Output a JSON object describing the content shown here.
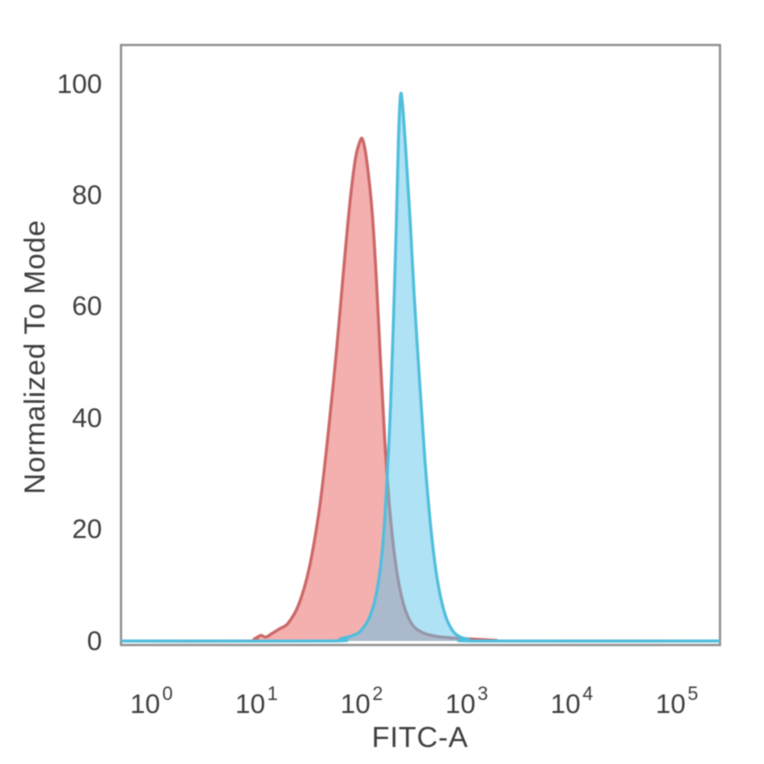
{
  "figure": {
    "background": "#ffffff",
    "axes_color": "#8f8f8f",
    "text_color": "#3d3d3d"
  },
  "chart_data": {
    "type": "area",
    "subtype": "flow-cytometry-overlay-histogram",
    "title": "",
    "xlabel": "FITC-A",
    "ylabel": "Normalized To Mode",
    "x_scale": "log10",
    "grid": false,
    "legend": null,
    "xlim_log10": [
      -0.29,
      5.41
    ],
    "ylim": [
      -1,
      107
    ],
    "x_ticks": [
      {
        "base": "10",
        "exp": "0",
        "log": 0
      },
      {
        "base": "10",
        "exp": "1",
        "log": 1
      },
      {
        "base": "10",
        "exp": "2",
        "log": 2
      },
      {
        "base": "10",
        "exp": "3",
        "log": 3
      },
      {
        "base": "10",
        "exp": "4",
        "log": 4
      },
      {
        "base": "10",
        "exp": "5",
        "log": 5
      }
    ],
    "y_ticks": [
      {
        "label": "0",
        "value": 0
      },
      {
        "label": "20",
        "value": 20
      },
      {
        "label": "40",
        "value": 40
      },
      {
        "label": "60",
        "value": 60
      },
      {
        "label": "80",
        "value": 80
      },
      {
        "label": "100",
        "value": 100
      }
    ],
    "series": [
      {
        "name": "red-histogram",
        "peak_log10x": 2.0,
        "peak_y": 90,
        "line_color": "#cd6767",
        "fill_color": "rgba(232,88,88,0.48)",
        "points_log10x_y": [
          [
            -0.29,
            0
          ],
          [
            0.9,
            0
          ],
          [
            0.98,
            0.4
          ],
          [
            1.04,
            1.0
          ],
          [
            1.09,
            0.7
          ],
          [
            1.15,
            1.4
          ],
          [
            1.22,
            2.2
          ],
          [
            1.3,
            3.2
          ],
          [
            1.4,
            6.5
          ],
          [
            1.5,
            13
          ],
          [
            1.6,
            24
          ],
          [
            1.68,
            37
          ],
          [
            1.76,
            52
          ],
          [
            1.83,
            67
          ],
          [
            1.89,
            79
          ],
          [
            1.94,
            86.5
          ],
          [
            1.98,
            89.5
          ],
          [
            2.01,
            90
          ],
          [
            2.05,
            86
          ],
          [
            2.1,
            77
          ],
          [
            2.14,
            65
          ],
          [
            2.18,
            50
          ],
          [
            2.22,
            36
          ],
          [
            2.27,
            23
          ],
          [
            2.33,
            13
          ],
          [
            2.4,
            6.5
          ],
          [
            2.48,
            3
          ],
          [
            2.58,
            1.5
          ],
          [
            2.72,
            0.8
          ],
          [
            2.9,
            0.5
          ],
          [
            3.1,
            0.3
          ],
          [
            3.28,
            0.12
          ],
          [
            3.4,
            0
          ],
          [
            5.41,
            0
          ]
        ]
      },
      {
        "name": "cyan-histogram",
        "peak_log10x": 2.37,
        "peak_y": 98,
        "line_color": "#4fbedd",
        "fill_color": "rgba(96,198,233,0.5)",
        "points_log10x_y": [
          [
            -0.29,
            0
          ],
          [
            1.68,
            0
          ],
          [
            1.8,
            0.4
          ],
          [
            1.92,
            1.0
          ],
          [
            2.0,
            2.0
          ],
          [
            2.08,
            4.5
          ],
          [
            2.14,
            8.5
          ],
          [
            2.19,
            15
          ],
          [
            2.23,
            25
          ],
          [
            2.27,
            40
          ],
          [
            2.3,
            56
          ],
          [
            2.33,
            75
          ],
          [
            2.35,
            90
          ],
          [
            2.37,
            98
          ],
          [
            2.39,
            96
          ],
          [
            2.42,
            88
          ],
          [
            2.46,
            76
          ],
          [
            2.5,
            62
          ],
          [
            2.55,
            47
          ],
          [
            2.6,
            33
          ],
          [
            2.66,
            20
          ],
          [
            2.72,
            11
          ],
          [
            2.79,
            5
          ],
          [
            2.86,
            2
          ],
          [
            2.93,
            0.8
          ],
          [
            3.02,
            0.3
          ],
          [
            3.12,
            0
          ],
          [
            5.41,
            0
          ]
        ]
      }
    ]
  }
}
